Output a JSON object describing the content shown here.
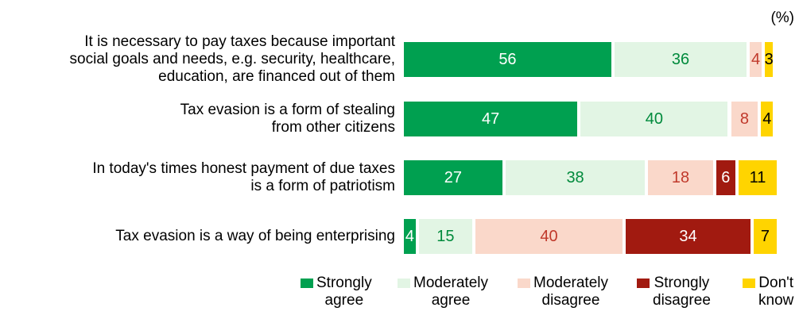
{
  "unit_label": "(%)",
  "colors": {
    "strongly_agree": "#00a050",
    "moderately_agree": "#e2f5e4",
    "moderately_disagree": "#fad8ca",
    "strongly_disagree": "#a11a10",
    "dont_know": "#ffd400"
  },
  "chart_data": {
    "type": "bar",
    "orientation": "horizontal",
    "stacked": true,
    "xlim": [
      0,
      100
    ],
    "categories": [
      "It is necessary to pay taxes because important\nsocial goals and needs, e.g. security, healthcare,\neducation, are financed out of them",
      "Tax evasion is a form of stealing\nfrom other citizens",
      "In today's times honest payment of due taxes\nis a form of patriotism",
      "Tax evasion is a way of being enterprising"
    ],
    "series": [
      {
        "name": "Strongly\nagree",
        "key": "strongly_agree",
        "values": [
          56,
          47,
          27,
          4
        ],
        "label_color": "#ffffff"
      },
      {
        "name": "Moderately\nagree",
        "key": "moderately_agree",
        "values": [
          36,
          40,
          38,
          15
        ],
        "label_color": "#008a3c"
      },
      {
        "name": "Moderately\ndisagree",
        "key": "moderately_disagree",
        "values": [
          4,
          8,
          18,
          40
        ],
        "label_color": "#c0392b"
      },
      {
        "name": "Strongly\ndisagree",
        "key": "strongly_disagree",
        "values": [
          0,
          0,
          6,
          34
        ],
        "label_color": "#ffffff"
      },
      {
        "name": "Don't\nknow",
        "key": "dont_know",
        "values": [
          3,
          4,
          11,
          7
        ],
        "label_color": "#000000"
      }
    ],
    "legend_position": "bottom",
    "grid": false
  }
}
